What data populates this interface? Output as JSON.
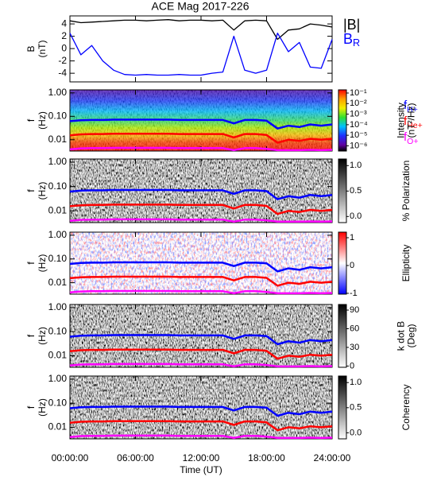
{
  "title": "ACE Mag 2017-226",
  "chart_data": [
    {
      "type": "line",
      "ylabel": [
        "B",
        "(nT)"
      ],
      "ylim": [
        -5.4,
        5.3
      ],
      "yticks": [
        4,
        2,
        0,
        -2,
        -4
      ],
      "x": [
        0,
        1,
        2,
        3,
        4,
        5,
        6,
        7,
        8,
        9,
        10,
        11,
        12,
        13,
        14,
        15,
        16,
        17,
        18,
        19,
        20,
        21,
        22,
        23,
        24
      ],
      "series": [
        {
          "name": "|B|",
          "color": "#000000",
          "values": [
            4.5,
            4.2,
            4.3,
            4.4,
            4.5,
            4.6,
            4.6,
            4.5,
            4.6,
            4.7,
            4.5,
            4.6,
            4.6,
            4.5,
            4.6,
            3.0,
            4.5,
            4.6,
            4.5,
            1.5,
            3.0,
            3.2,
            4.0,
            3.8,
            3.5
          ]
        },
        {
          "name": "B",
          "subscript": "R",
          "color": "#0000ff",
          "values": [
            2.5,
            -1,
            0.5,
            -2,
            -3.5,
            -4.2,
            -4.3,
            -4.2,
            -4.3,
            -4.3,
            -4.2,
            -4.3,
            -4.3,
            -4.0,
            -3.8,
            2.0,
            -3.5,
            -4.0,
            -3.5,
            2.5,
            -0.5,
            1.0,
            -3.0,
            -3.2,
            1.5
          ]
        }
      ]
    },
    {
      "type": "heatmap",
      "colormap": "rainbow",
      "ylog": true,
      "ylabel": [
        "f",
        "(Hz)"
      ],
      "ylim": [
        0.0033,
        1.35
      ],
      "yticks": [
        {
          "value": 1,
          "label": "1.00"
        },
        {
          "value": 0.1,
          "label": "0.10"
        },
        {
          "value": 0.01,
          "label": "0.01"
        }
      ],
      "colorbar_label": [
        "Intensity",
        "(nT²/Hz)"
      ],
      "colorbar_log": true,
      "colorbar_lim": [
        3.2e-07,
        0.2
      ],
      "colorbar_ticks": [
        {
          "value": 0.1,
          "label": "10⁻¹"
        },
        {
          "value": 0.01,
          "label": "10⁻²"
        },
        {
          "value": 0.001,
          "label": "10⁻³"
        },
        {
          "value": 0.0001,
          "label": "10⁻⁴"
        },
        {
          "value": 1e-05,
          "label": "10⁻⁵"
        },
        {
          "value": 1e-06,
          "label": "10⁻⁶"
        }
      ],
      "x": [
        0,
        1,
        2,
        3,
        4,
        5,
        6,
        7,
        8,
        9,
        10,
        11,
        12,
        13,
        14,
        15,
        16,
        17,
        18,
        19,
        20,
        21,
        22,
        23,
        24
      ],
      "series": [
        {
          "name": "f",
          "subscript": "H+",
          "color": "#0000ff",
          "values": [
            0.062,
            0.068,
            0.07,
            0.07,
            0.072,
            0.072,
            0.072,
            0.072,
            0.072,
            0.072,
            0.07,
            0.07,
            0.07,
            0.07,
            0.07,
            0.05,
            0.07,
            0.07,
            0.065,
            0.03,
            0.04,
            0.035,
            0.045,
            0.04,
            0.045
          ]
        },
        {
          "name": "f",
          "subscript": "He+",
          "color": "#ff0000",
          "values": [
            0.0155,
            0.017,
            0.0175,
            0.0175,
            0.018,
            0.018,
            0.018,
            0.018,
            0.018,
            0.018,
            0.0175,
            0.0175,
            0.0175,
            0.0175,
            0.0175,
            0.0125,
            0.0175,
            0.0175,
            0.016,
            0.0075,
            0.01,
            0.009,
            0.011,
            0.01,
            0.011
          ]
        },
        {
          "name": "f",
          "subscript": "O+",
          "color": "#ff00ff",
          "values": [
            0.0039,
            0.0043,
            0.0044,
            0.0044,
            0.0045,
            0.0045,
            0.0045,
            0.0045,
            0.0045,
            0.0045,
            0.0044,
            0.0044,
            0.0044,
            0.0044,
            0.0044,
            0.0036,
            0.0044,
            0.0044,
            0.0041,
            0.0036,
            0.0036,
            0.0036,
            0.0037,
            0.0036,
            0.0037
          ]
        }
      ]
    },
    {
      "type": "heatmap",
      "colormap": "gray",
      "ylog": true,
      "ylabel": [
        "f",
        "(Hz)"
      ],
      "ylim": [
        0.0033,
        1.35
      ],
      "yticks": [
        {
          "value": 1,
          "label": "1.00"
        },
        {
          "value": 0.1,
          "label": "0.10"
        },
        {
          "value": 0.01,
          "label": "0.01"
        }
      ],
      "colorbar_label": [
        "% Polarization"
      ],
      "colorbar_lim": [
        -0.12,
        1.13
      ],
      "colorbar_ticks": [
        {
          "value": 1,
          "label": "1.0"
        },
        {
          "value": 0.5,
          "label": "0.5"
        },
        {
          "value": 0,
          "label": "0.0"
        }
      ]
    },
    {
      "type": "heatmap",
      "colormap": "bwr",
      "ylog": true,
      "ylabel": [
        "f",
        "(Hz)"
      ],
      "ylim": [
        0.0033,
        1.35
      ],
      "yticks": [
        {
          "value": 1,
          "label": "1.00"
        },
        {
          "value": 0.1,
          "label": "0.10"
        },
        {
          "value": 0.01,
          "label": "0.01"
        }
      ],
      "colorbar_label": [
        "Ellipticity"
      ],
      "colorbar_lim": [
        -1.03,
        1.2
      ],
      "colorbar_ticks": [
        1,
        0,
        -1
      ]
    },
    {
      "type": "heatmap",
      "colormap": "gray",
      "ylog": true,
      "ylabel": [
        "f",
        "(Hz)"
      ],
      "ylim": [
        0.0033,
        1.35
      ],
      "yticks": [
        {
          "value": 1,
          "label": "1.00"
        },
        {
          "value": 0.1,
          "label": "0.10"
        },
        {
          "value": 0.01,
          "label": "0.01"
        }
      ],
      "colorbar_label": [
        "k dot B",
        "(Deg)"
      ],
      "colorbar_lim": [
        -2,
        99
      ],
      "colorbar_ticks": [
        90,
        60,
        30,
        0
      ]
    },
    {
      "type": "heatmap",
      "colormap": "gray",
      "ylog": true,
      "ylabel": [
        "f",
        "(Hz)"
      ],
      "ylim": [
        0.0033,
        1.35
      ],
      "yticks": [
        {
          "value": 1,
          "label": "1.00"
        },
        {
          "value": 0.1,
          "label": "0.10"
        },
        {
          "value": 0.01,
          "label": "0.01"
        }
      ],
      "colorbar_label": [
        "Coherency"
      ],
      "colorbar_lim": [
        -0.12,
        1.13
      ],
      "colorbar_ticks": [
        {
          "value": 1,
          "label": "1.0"
        },
        {
          "value": 0.5,
          "label": "0.5"
        },
        {
          "value": 0,
          "label": "0.0"
        }
      ],
      "xlabel": "Time (UT)",
      "xlim": [
        0,
        24
      ],
      "xticks": [
        {
          "value": 0,
          "label": "00:00:00"
        },
        {
          "value": 6,
          "label": "06:00:00"
        },
        {
          "value": 12,
          "label": "12:00:00"
        },
        {
          "value": 18,
          "label": "18:00:00"
        },
        {
          "value": 24,
          "label": "24:00:00"
        }
      ]
    }
  ]
}
